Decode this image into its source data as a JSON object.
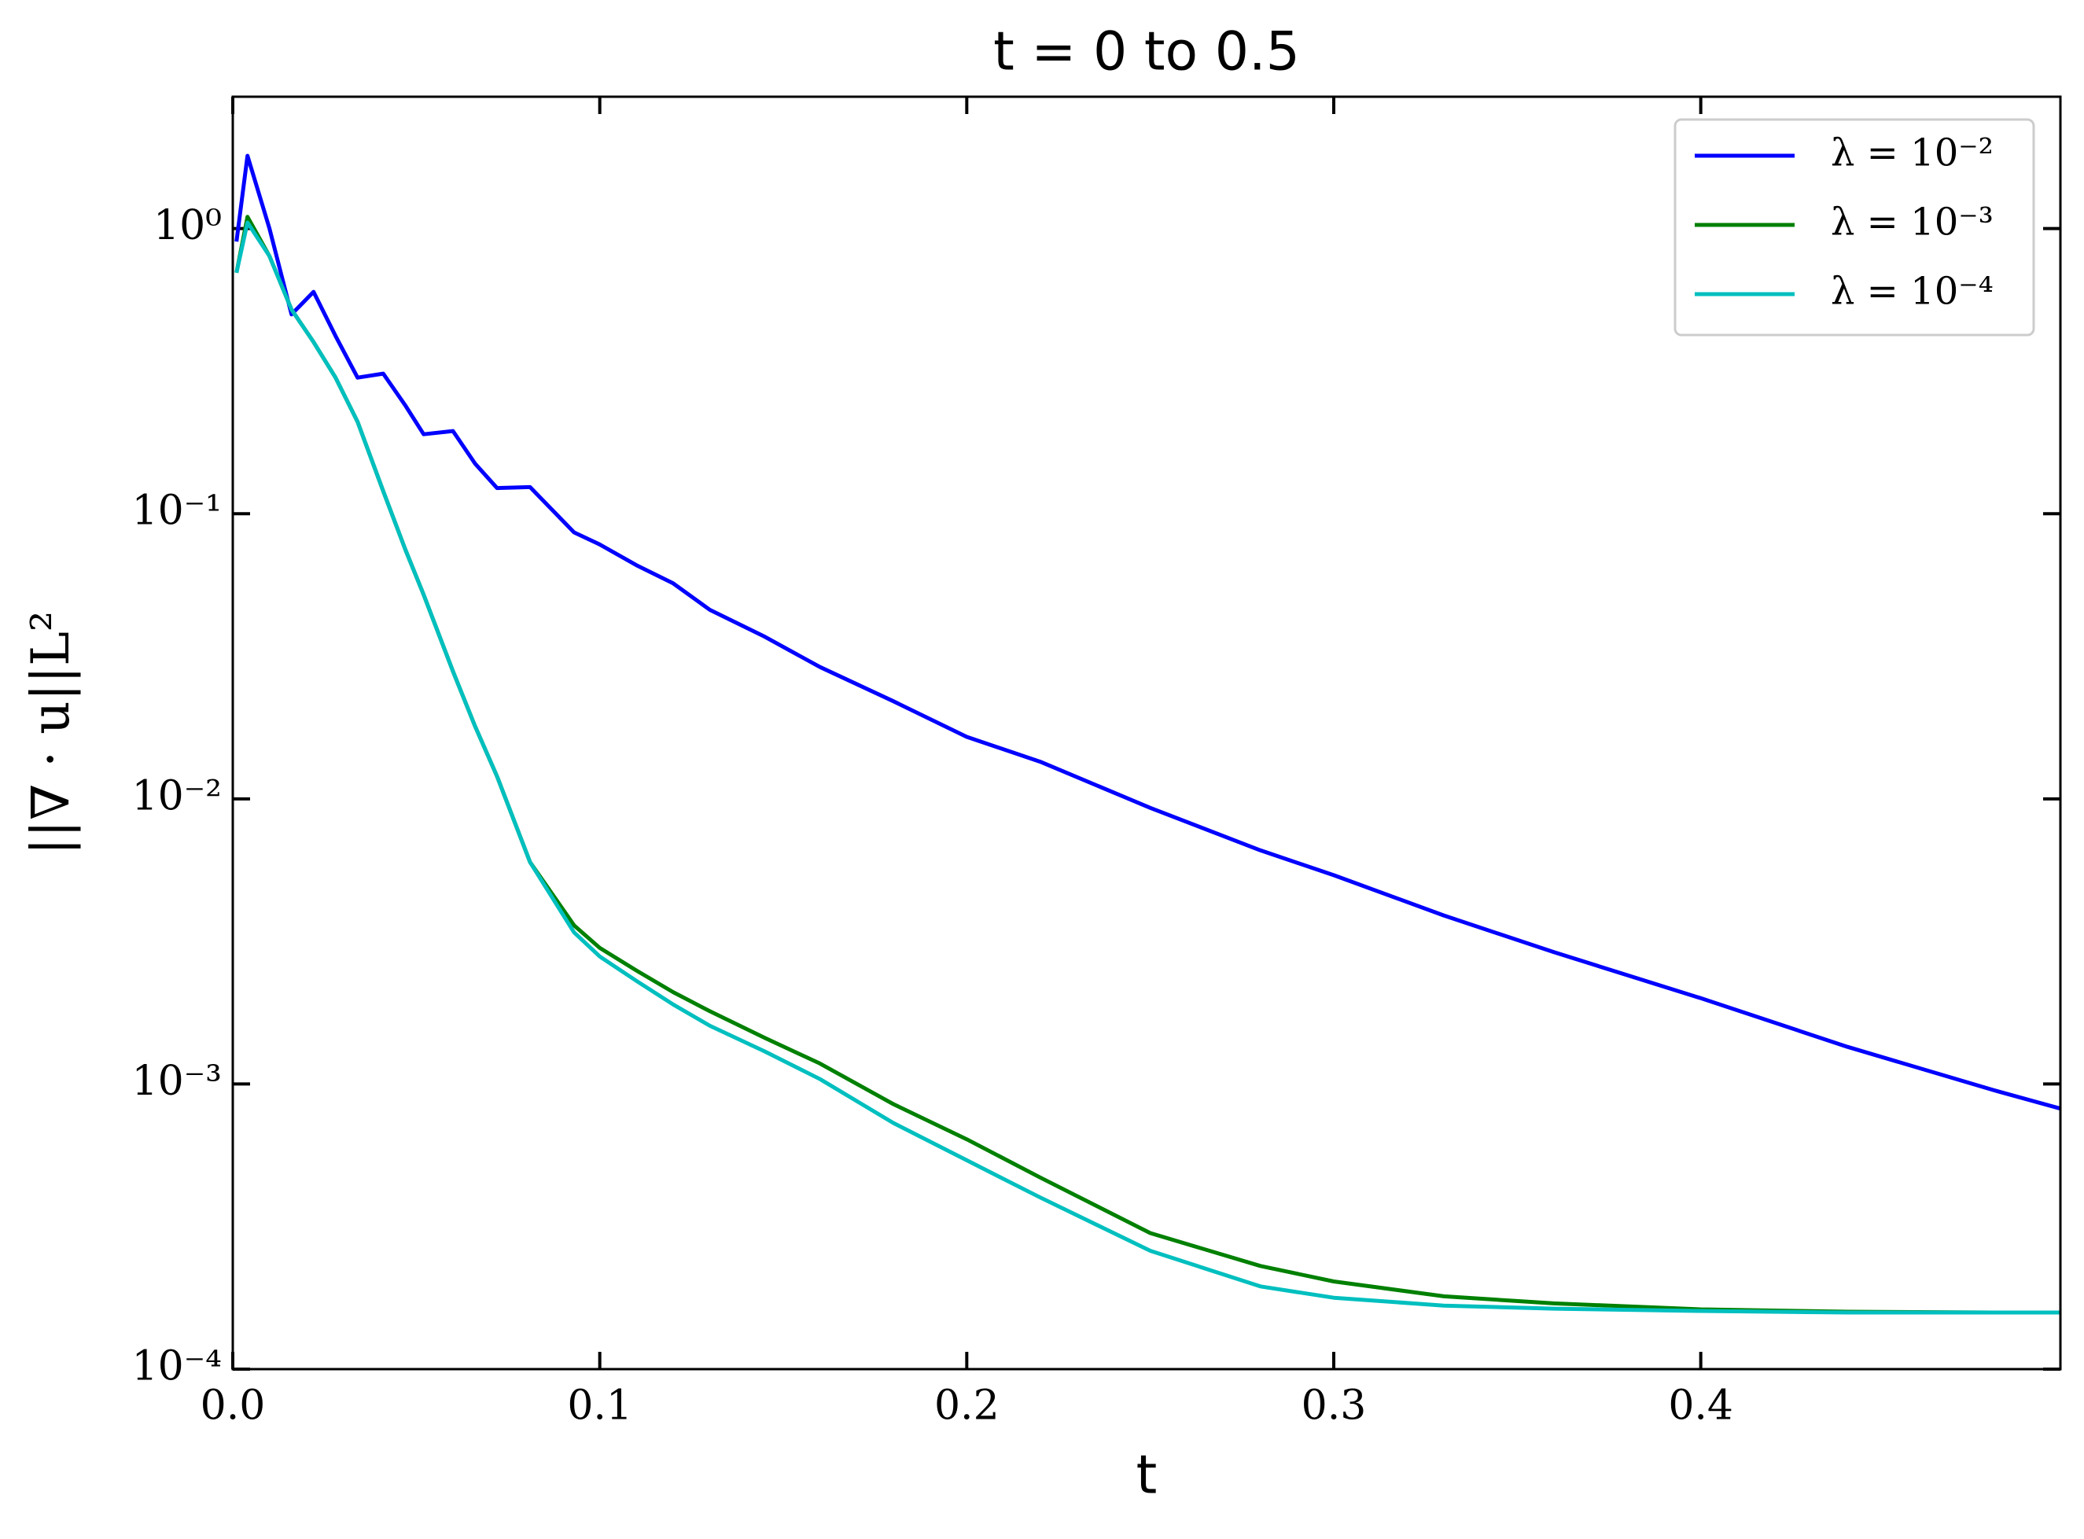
{
  "chart_data": {
    "type": "line",
    "title": "t = 0 to 0.5",
    "x_label": "t",
    "y_label": "||∇ · u||L²",
    "x": [
      0.001,
      0.004,
      0.01,
      0.016,
      0.022,
      0.028,
      0.034,
      0.041,
      0.047,
      0.052,
      0.06,
      0.066,
      0.072,
      0.081,
      0.093,
      0.1,
      0.11,
      0.12,
      0.13,
      0.145,
      0.16,
      0.18,
      0.2,
      0.22,
      0.25,
      0.28,
      0.3,
      0.33,
      0.36,
      0.4,
      0.44,
      0.48,
      0.498
    ],
    "series": [
      {
        "name": "λ = 10⁻²",
        "color": "#0000ff",
        "values": [
          0.9,
          1.8,
          1.0,
          0.5,
          0.6,
          0.42,
          0.3,
          0.31,
          0.24,
          0.19,
          0.195,
          0.15,
          0.123,
          0.124,
          0.086,
          0.078,
          0.066,
          0.057,
          0.046,
          0.037,
          0.029,
          0.022,
          0.0165,
          0.0135,
          0.0093,
          0.0066,
          0.0054,
          0.0039,
          0.0029,
          0.002,
          0.00135,
          0.00095,
          0.00082
        ]
      },
      {
        "name": "λ = 10⁻³",
        "color": "#008000",
        "values": [
          0.7,
          1.1,
          0.8,
          0.52,
          0.4,
          0.3,
          0.21,
          0.12,
          0.075,
          0.052,
          0.028,
          0.018,
          0.012,
          0.006,
          0.0036,
          0.003,
          0.0025,
          0.0021,
          0.0018,
          0.00145,
          0.00118,
          0.00085,
          0.00064,
          0.00047,
          0.0003,
          0.00023,
          0.000203,
          0.00018,
          0.00017,
          0.000162,
          0.000159,
          0.000158,
          0.000158
        ]
      },
      {
        "name": "λ = 10⁻⁴",
        "color": "#00bfbf",
        "values": [
          0.7,
          1.05,
          0.8,
          0.52,
          0.4,
          0.3,
          0.21,
          0.12,
          0.075,
          0.052,
          0.028,
          0.018,
          0.012,
          0.006,
          0.0034,
          0.0028,
          0.0023,
          0.0019,
          0.0016,
          0.0013,
          0.00104,
          0.00073,
          0.00054,
          0.0004,
          0.00026,
          0.000195,
          0.000178,
          0.000167,
          0.000163,
          0.00016,
          0.000158,
          0.000158,
          0.000158
        ]
      }
    ],
    "xlim": [
      0,
      0.498
    ],
    "xticks": [
      {
        "value": 0,
        "label": "0.0"
      },
      0.1,
      0.2,
      0.3,
      0.4
    ],
    "ylim": [
      0.0001,
      2.9
    ],
    "yscale": "log",
    "yticks": [
      {
        "value": 0.0001,
        "label": "10⁻⁴"
      },
      {
        "value": 0.001,
        "label": "10⁻³"
      },
      {
        "value": 0.01,
        "label": "10⁻²"
      },
      {
        "value": 0.1,
        "label": "10⁻¹"
      },
      {
        "value": 1,
        "label": "10⁰"
      }
    ],
    "legend": "upper right"
  }
}
